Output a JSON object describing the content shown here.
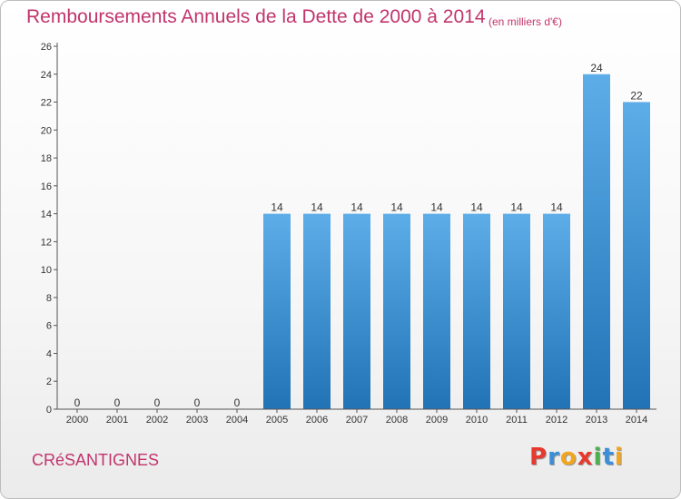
{
  "header": {
    "title": "Remboursements Annuels de la Dette de 2000 à 2014",
    "unit": "(en milliers d'€)"
  },
  "footer": {
    "commune": "CRéSANTIGNES",
    "logo_letters": [
      "P",
      "r",
      "o",
      "x",
      "i",
      "t",
      "i"
    ]
  },
  "colors": {
    "title": "#c2346b",
    "bar_top": "#5dade8",
    "bar_bottom": "#2173b6",
    "axis": "#555555",
    "logo": [
      "#e63a2e",
      "#3a8fd8",
      "#f2a51e",
      "#e63a2e",
      "#4caf50",
      "#3a8fd8",
      "#f2a51e"
    ]
  },
  "chart_data": {
    "type": "bar",
    "title": "Remboursements Annuels de la Dette de 2000 à 2014",
    "xlabel": "",
    "ylabel": "(en milliers d'€)",
    "categories": [
      "2000",
      "2001",
      "2002",
      "2003",
      "2004",
      "2005",
      "2006",
      "2007",
      "2008",
      "2009",
      "2010",
      "2011",
      "2012",
      "2013",
      "2014"
    ],
    "values": [
      0,
      0,
      0,
      0,
      0,
      14,
      14,
      14,
      14,
      14,
      14,
      14,
      14,
      24,
      22
    ],
    "ylim": [
      0,
      26
    ],
    "yticks": [
      0,
      2,
      4,
      6,
      8,
      10,
      12,
      14,
      16,
      18,
      20,
      22,
      24,
      26
    ],
    "grid": false
  }
}
